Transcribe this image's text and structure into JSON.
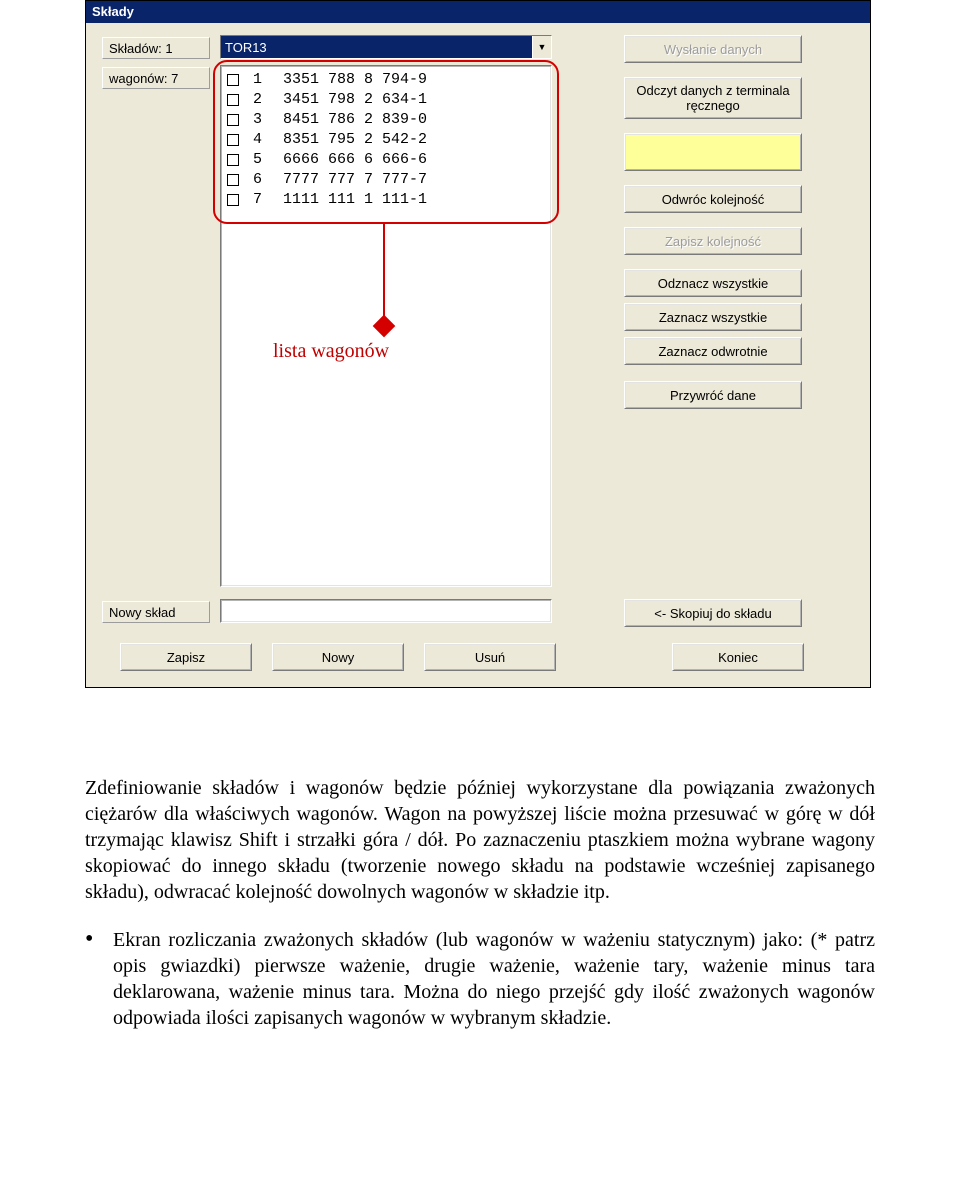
{
  "colors": {
    "win_face": "#ece9d8",
    "titlebar": "#0a246a",
    "title_text": "#ffffff",
    "disabled": "#9c9c9c",
    "highlight": "#ffff99",
    "callout": "#d40000",
    "ann_text": "#c00000"
  },
  "dialog": {
    "title": "Składy",
    "labels": {
      "sklady_count": "Składów: 1",
      "wagon_count": "wagonów: 7",
      "new_sklad": "Nowy skład"
    },
    "combo": {
      "selected": "TOR13"
    },
    "wagons": [
      {
        "idx": "1",
        "num": "3351 788 8 794-9"
      },
      {
        "idx": "2",
        "num": "3451 798 2 634-1"
      },
      {
        "idx": "3",
        "num": "8451 786 2 839-0"
      },
      {
        "idx": "4",
        "num": "8351 795 2 542-2"
      },
      {
        "idx": "5",
        "num": "6666 666 6 666-6"
      },
      {
        "idx": "6",
        "num": "7777 777 7 777-7"
      },
      {
        "idx": "7",
        "num": "1111 111 1 111-1"
      }
    ],
    "buttons": {
      "send": {
        "label": "Wysłanie danych",
        "disabled": true
      },
      "read": {
        "label": "Odczyt danych z terminala ręcznego",
        "disabled": false
      },
      "yellow": {
        "label": "",
        "disabled": false
      },
      "reverse": {
        "label": "Odwróc kolejność",
        "disabled": false
      },
      "save_order": {
        "label": "Zapisz kolejność",
        "disabled": true
      },
      "uncheck_all": {
        "label": "Odznacz wszystkie",
        "disabled": false
      },
      "check_all": {
        "label": "Zaznacz wszystkie",
        "disabled": false
      },
      "invert": {
        "label": "Zaznacz odwrotnie",
        "disabled": false
      },
      "restore": {
        "label": "Przywróć dane",
        "disabled": false
      },
      "copy_to": {
        "label": "<- Skopiuj do składu",
        "disabled": false
      },
      "save": {
        "label": "Zapisz",
        "disabled": false
      },
      "new": {
        "label": "Nowy",
        "disabled": false
      },
      "delete": {
        "label": "Usuń",
        "disabled": false
      },
      "close": {
        "label": "Koniec",
        "disabled": false
      }
    }
  },
  "annotation": {
    "label": "lista wagonów"
  },
  "paragraph1": "Zdefiniowanie składów i wagonów będzie później wykorzystane dla powiązania zważonych ciężarów dla właściwych wagonów. Wagon na powyższej liście można przesuwać w górę w dół trzymając klawisz Shift i strzałki góra / dół. Po zaznaczeniu ptaszkiem można wybrane wagony skopiować do innego składu (tworzenie nowego składu na podstawie wcześniej zapisanego składu), odwracać kolejność dowolnych wagonów w składzie itp.",
  "bullet1": "Ekran rozliczania zważonych składów (lub wagonów w ważeniu statycznym) jako: (* patrz opis gwiazdki) pierwsze ważenie, drugie ważenie, ważenie tary, ważenie minus tara deklarowana, ważenie minus tara. Można do niego przejść gdy ilość zważonych wagonów odpowiada ilości zapisanych wagonów w wybranym składzie."
}
